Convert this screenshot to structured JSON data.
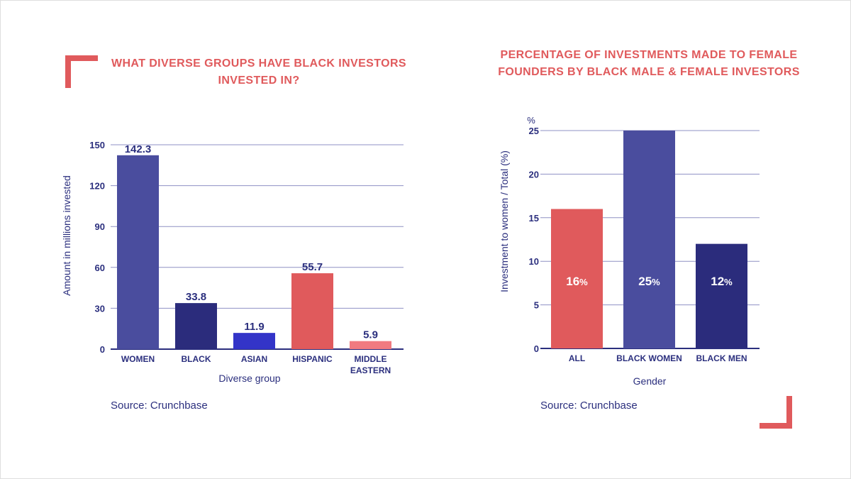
{
  "chart_data": [
    {
      "type": "bar",
      "title": "WHAT DIVERSE GROUPS HAVE BLACK INVESTORS INVESTED IN?",
      "xlabel": "Diverse group",
      "ylabel": "Amount in millions invested",
      "ylim": [
        0,
        150
      ],
      "yticks": [
        "0",
        "30",
        "60",
        "90",
        "120",
        "150"
      ],
      "categories": [
        [
          "WOMEN"
        ],
        [
          "BLACK"
        ],
        [
          "ASIAN"
        ],
        [
          "HISPANIC"
        ],
        [
          "MIDDLE",
          "EASTERN"
        ]
      ],
      "values": [
        142.3,
        33.8,
        11.9,
        55.7,
        5.9
      ],
      "value_labels": [
        "142.3",
        "33.8",
        "11.9",
        "55.7",
        "5.9"
      ],
      "colors": [
        "#4a4d9e",
        "#2b2c7c",
        "#3334c8",
        "#e05a5c",
        "#f07a80"
      ],
      "source": "Source: Crunchbase",
      "grid": true
    },
    {
      "type": "bar",
      "title": "PERCENTAGE OF INVESTMENTS MADE TO FEMALE FOUNDERS BY BLACK MALE & FEMALE INVESTORS",
      "xlabel": "Gender",
      "ylabel": "Investment to women / Total (%)",
      "yunit": "%",
      "ylim": [
        0,
        25
      ],
      "yticks": [
        "0",
        "5",
        "10",
        "15",
        "20",
        "25"
      ],
      "categories": [
        [
          "ALL"
        ],
        [
          "BLACK WOMEN"
        ],
        [
          "BLACK MEN"
        ]
      ],
      "values": [
        16,
        25,
        12
      ],
      "value_labels": [
        "16",
        "25",
        "12"
      ],
      "value_suffix": "%",
      "colors": [
        "#e05a5c",
        "#4a4d9e",
        "#2b2c7c"
      ],
      "source": "Source: Crunchbase",
      "grid": true
    }
  ]
}
